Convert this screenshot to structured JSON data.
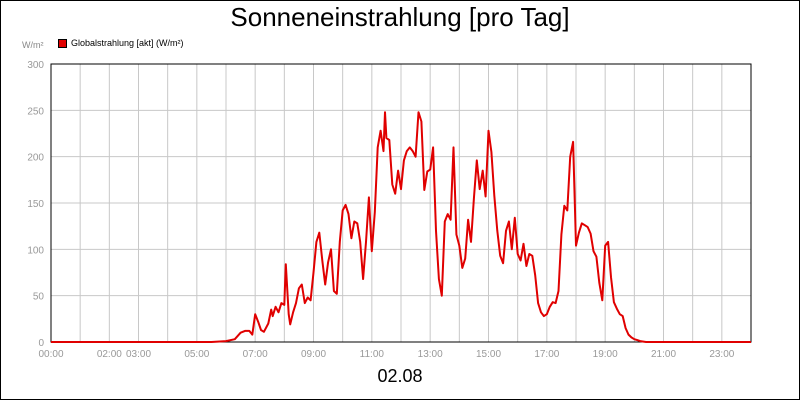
{
  "chart_data": {
    "type": "line",
    "title": "Sonneneinstrahlung [pro Tag]",
    "xlabel": "02.08",
    "ylabel": "W/m²",
    "unit_label": "W/m²",
    "legend": [
      "Globalstrahlung [akt] (W/m²)"
    ],
    "legend_position": "top-left",
    "grid": true,
    "line_color": "#e00000",
    "xlim": [
      0,
      24
    ],
    "ylim": [
      0,
      300
    ],
    "y_ticks": [
      "0",
      "50",
      "100",
      "150",
      "200",
      "250",
      "300"
    ],
    "x_ticks": [
      {
        "h": 0,
        "label": "00:00"
      },
      {
        "h": 2,
        "label": "02:00"
      },
      {
        "h": 3,
        "label": "03:00"
      },
      {
        "h": 5,
        "label": "05:00"
      },
      {
        "h": 7,
        "label": "07:00"
      },
      {
        "h": 9,
        "label": "09:00"
      },
      {
        "h": 11,
        "label": "11:00"
      },
      {
        "h": 13,
        "label": "13:00"
      },
      {
        "h": 15,
        "label": "15:00"
      },
      {
        "h": 17,
        "label": "17:00"
      },
      {
        "h": 19,
        "label": "19:00"
      },
      {
        "h": 21,
        "label": "21:00"
      },
      {
        "h": 23,
        "label": "23:00"
      }
    ],
    "series": [
      {
        "name": "Globalstrahlung [akt] (W/m²)",
        "x": [
          0,
          5.5,
          6.0,
          6.3,
          6.5,
          6.65,
          6.8,
          6.9,
          7.0,
          7.1,
          7.2,
          7.3,
          7.45,
          7.55,
          7.6,
          7.7,
          7.8,
          7.9,
          8.0,
          8.05,
          8.15,
          8.2,
          8.3,
          8.4,
          8.5,
          8.6,
          8.7,
          8.8,
          8.9,
          9.0,
          9.1,
          9.2,
          9.3,
          9.4,
          9.5,
          9.6,
          9.7,
          9.8,
          9.9,
          10.0,
          10.1,
          10.2,
          10.3,
          10.4,
          10.5,
          10.6,
          10.7,
          10.8,
          10.9,
          11.0,
          11.1,
          11.2,
          11.3,
          11.4,
          11.45,
          11.5,
          11.6,
          11.7,
          11.8,
          11.9,
          12.0,
          12.1,
          12.2,
          12.3,
          12.4,
          12.5,
          12.6,
          12.7,
          12.8,
          12.9,
          13.0,
          13.1,
          13.2,
          13.3,
          13.4,
          13.5,
          13.6,
          13.7,
          13.8,
          13.9,
          14.0,
          14.1,
          14.2,
          14.3,
          14.4,
          14.5,
          14.6,
          14.7,
          14.8,
          14.9,
          15.0,
          15.1,
          15.2,
          15.3,
          15.4,
          15.5,
          15.6,
          15.7,
          15.8,
          15.9,
          16.0,
          16.1,
          16.2,
          16.3,
          16.4,
          16.5,
          16.6,
          16.7,
          16.8,
          16.9,
          17.0,
          17.1,
          17.2,
          17.3,
          17.4,
          17.5,
          17.6,
          17.7,
          17.8,
          17.9,
          18.0,
          18.1,
          18.2,
          18.3,
          18.4,
          18.5,
          18.6,
          18.7,
          18.8,
          18.9,
          19.0,
          19.1,
          19.2,
          19.3,
          19.4,
          19.5,
          19.6,
          19.7,
          19.8,
          19.9,
          20.0,
          20.1,
          20.2,
          20.4,
          20.6,
          20.8,
          21.0,
          24.0
        ],
        "values": [
          0,
          0,
          1,
          3,
          10,
          12,
          12,
          8,
          30,
          22,
          13,
          11,
          20,
          35,
          28,
          38,
          32,
          42,
          40,
          84,
          30,
          19,
          32,
          42,
          58,
          62,
          42,
          48,
          45,
          75,
          108,
          118,
          88,
          62,
          86,
          100,
          55,
          52,
          108,
          142,
          148,
          138,
          112,
          130,
          128,
          108,
          68,
          108,
          156,
          98,
          140,
          210,
          228,
          206,
          248,
          220,
          218,
          170,
          160,
          185,
          165,
          196,
          206,
          210,
          206,
          200,
          248,
          238,
          164,
          184,
          186,
          210,
          120,
          68,
          50,
          130,
          138,
          132,
          210,
          116,
          104,
          80,
          90,
          132,
          108,
          155,
          196,
          165,
          185,
          157,
          228,
          205,
          158,
          120,
          93,
          85,
          120,
          130,
          100,
          134,
          95,
          88,
          106,
          82,
          95,
          93,
          72,
          42,
          32,
          28,
          30,
          38,
          43,
          42,
          55,
          116,
          147,
          142,
          200,
          216,
          104,
          118,
          128,
          126,
          124,
          117,
          98,
          92,
          64,
          45,
          104,
          108,
          70,
          43,
          36,
          30,
          28,
          15,
          8,
          5,
          3,
          2,
          1,
          0,
          0,
          0,
          0,
          0
        ]
      }
    ]
  }
}
